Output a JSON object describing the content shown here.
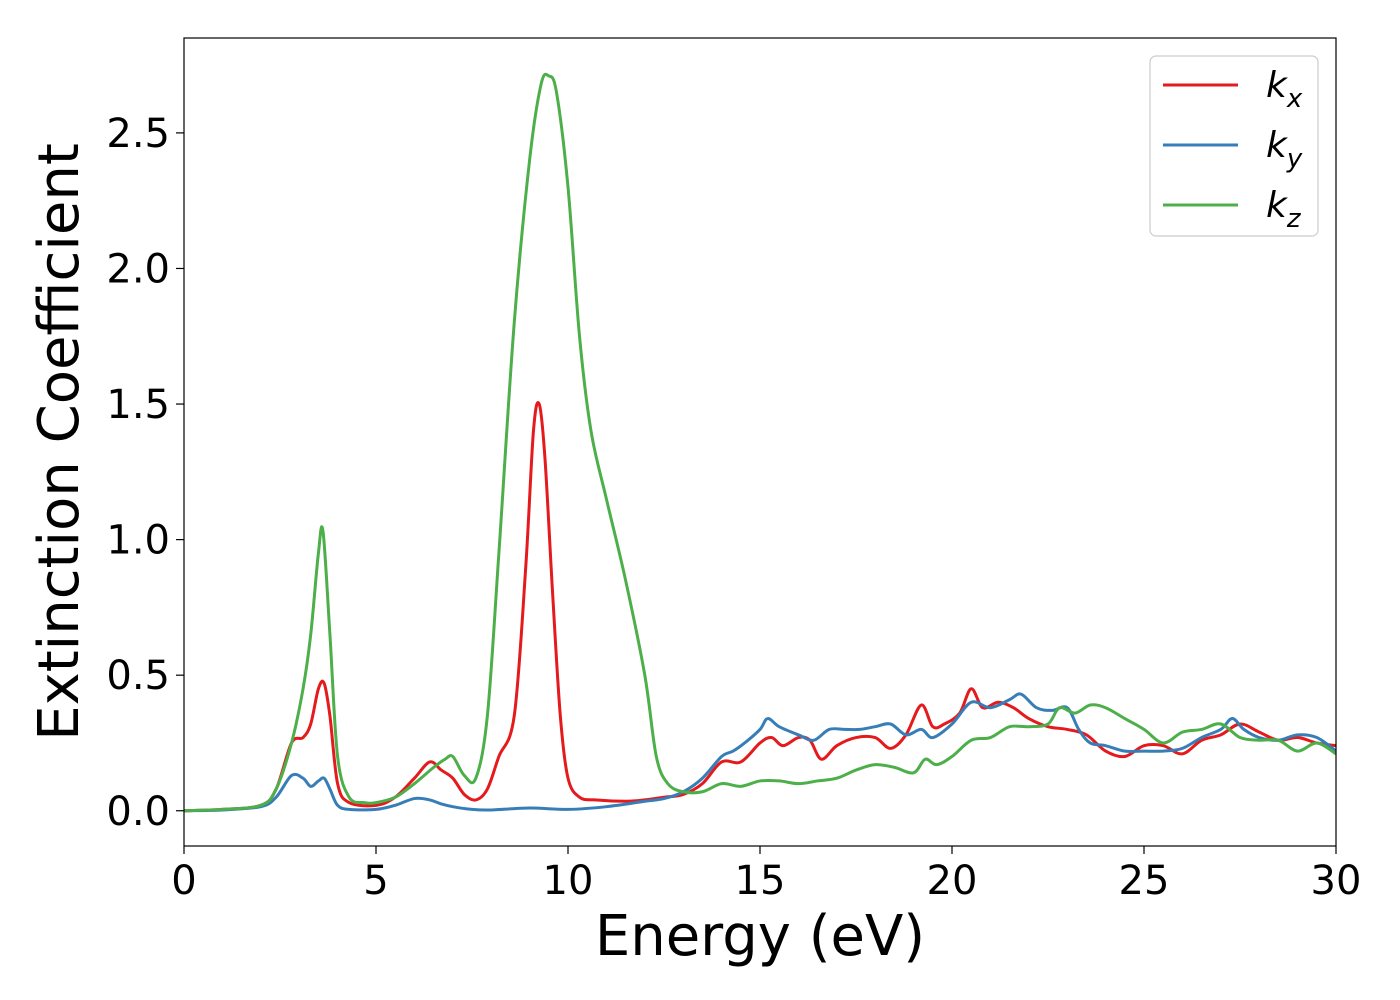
{
  "chart_data": {
    "type": "line",
    "xlabel": "Energy (eV)",
    "ylabel": "Extinction Coefficient",
    "xlim": [
      0,
      30
    ],
    "ylim": [
      -0.13,
      2.85
    ],
    "xticks": [
      0,
      5,
      10,
      15,
      20,
      25,
      30
    ],
    "yticks": [
      0.0,
      0.5,
      1.0,
      1.5,
      2.0,
      2.5
    ],
    "xtick_labels": [
      "0",
      "5",
      "10",
      "15",
      "20",
      "25",
      "30"
    ],
    "ytick_labels": [
      "0.0",
      "0.5",
      "1.0",
      "1.5",
      "2.0",
      "2.5"
    ],
    "grid": false,
    "legend_position": "top-right",
    "series": [
      {
        "name": "k",
        "subscript": "x",
        "color": "#e41a1c",
        "x": [
          0,
          1,
          2,
          2.4,
          2.8,
          3.1,
          3.3,
          3.5,
          3.65,
          3.8,
          4.0,
          4.3,
          5.0,
          5.5,
          6.0,
          6.4,
          6.7,
          7.0,
          7.3,
          7.6,
          7.9,
          8.2,
          8.6,
          8.9,
          9.1,
          9.25,
          9.4,
          9.6,
          9.8,
          10.0,
          10.3,
          10.7,
          11.5,
          12.0,
          12.5,
          13.0,
          13.5,
          14.0,
          14.5,
          15.0,
          15.3,
          15.6,
          16.0,
          16.3,
          16.6,
          17.0,
          17.5,
          18.0,
          18.4,
          18.8,
          19.2,
          19.5,
          19.8,
          20.2,
          20.5,
          20.8,
          21.2,
          21.6,
          22.0,
          22.5,
          23.0,
          23.5,
          24.0,
          24.5,
          25.0,
          25.5,
          26.0,
          26.5,
          27.0,
          27.5,
          28.0,
          28.5,
          29.0,
          29.5,
          30.0
        ],
        "values": [
          0.0,
          0.005,
          0.02,
          0.08,
          0.25,
          0.27,
          0.32,
          0.45,
          0.47,
          0.35,
          0.1,
          0.03,
          0.02,
          0.05,
          0.12,
          0.18,
          0.15,
          0.12,
          0.06,
          0.04,
          0.08,
          0.2,
          0.35,
          0.9,
          1.4,
          1.5,
          1.3,
          0.8,
          0.35,
          0.12,
          0.05,
          0.04,
          0.035,
          0.04,
          0.05,
          0.06,
          0.1,
          0.18,
          0.18,
          0.25,
          0.27,
          0.24,
          0.27,
          0.26,
          0.19,
          0.24,
          0.27,
          0.27,
          0.23,
          0.28,
          0.39,
          0.31,
          0.32,
          0.36,
          0.45,
          0.38,
          0.4,
          0.38,
          0.34,
          0.31,
          0.3,
          0.28,
          0.22,
          0.2,
          0.24,
          0.24,
          0.21,
          0.26,
          0.28,
          0.32,
          0.29,
          0.26,
          0.27,
          0.25,
          0.24
        ]
      },
      {
        "name": "k",
        "subscript": "y",
        "color": "#377eb8",
        "x": [
          0,
          1,
          2,
          2.4,
          2.8,
          3.1,
          3.3,
          3.5,
          3.65,
          3.8,
          4.0,
          4.3,
          5.0,
          5.5,
          6.0,
          6.4,
          6.7,
          7.0,
          7.5,
          8.0,
          9.0,
          10.0,
          11.0,
          12.0,
          12.5,
          13.0,
          13.5,
          14.0,
          14.3,
          14.6,
          15.0,
          15.2,
          15.5,
          16.0,
          16.4,
          16.8,
          17.2,
          17.6,
          18.0,
          18.4,
          18.8,
          19.2,
          19.5,
          20.0,
          20.5,
          21.0,
          21.5,
          21.8,
          22.2,
          22.6,
          23.0,
          23.3,
          23.6,
          24.0,
          24.5,
          25.0,
          25.5,
          26.0,
          26.5,
          27.0,
          27.3,
          27.6,
          28.0,
          28.5,
          29.0,
          29.5,
          30.0
        ],
        "values": [
          0.0,
          0.003,
          0.015,
          0.05,
          0.13,
          0.12,
          0.09,
          0.11,
          0.12,
          0.08,
          0.02,
          0.005,
          0.005,
          0.02,
          0.045,
          0.04,
          0.025,
          0.015,
          0.005,
          0.003,
          0.01,
          0.005,
          0.015,
          0.035,
          0.045,
          0.07,
          0.12,
          0.2,
          0.22,
          0.25,
          0.3,
          0.34,
          0.31,
          0.28,
          0.26,
          0.3,
          0.3,
          0.3,
          0.31,
          0.32,
          0.28,
          0.3,
          0.27,
          0.32,
          0.4,
          0.38,
          0.41,
          0.43,
          0.38,
          0.37,
          0.38,
          0.3,
          0.25,
          0.24,
          0.22,
          0.22,
          0.22,
          0.23,
          0.27,
          0.3,
          0.34,
          0.3,
          0.27,
          0.26,
          0.28,
          0.27,
          0.22
        ]
      },
      {
        "name": "k",
        "subscript": "z",
        "color": "#4daf4a",
        "x": [
          0,
          1,
          2,
          2.4,
          2.8,
          3.1,
          3.3,
          3.5,
          3.62,
          3.8,
          4.0,
          4.3,
          4.7,
          5.0,
          5.5,
          6.0,
          6.5,
          6.8,
          7.0,
          7.3,
          7.6,
          7.9,
          8.2,
          8.6,
          9.0,
          9.3,
          9.5,
          9.7,
          10.0,
          10.3,
          10.6,
          11.0,
          11.5,
          12.0,
          12.3,
          12.6,
          13.0,
          13.5,
          14.0,
          14.5,
          15.0,
          15.5,
          16.0,
          16.5,
          17.0,
          17.5,
          18.0,
          18.5,
          19.0,
          19.3,
          19.6,
          20.0,
          20.5,
          21.0,
          21.5,
          22.0,
          22.5,
          22.8,
          23.2,
          23.6,
          24.0,
          24.5,
          25.0,
          25.5,
          26.0,
          26.5,
          27.0,
          27.5,
          28.0,
          28.5,
          29.0,
          29.5,
          30.0
        ],
        "values": [
          0.0,
          0.005,
          0.02,
          0.08,
          0.25,
          0.45,
          0.65,
          0.95,
          1.03,
          0.65,
          0.2,
          0.05,
          0.03,
          0.03,
          0.05,
          0.1,
          0.16,
          0.19,
          0.2,
          0.13,
          0.12,
          0.35,
          0.95,
          1.8,
          2.4,
          2.68,
          2.71,
          2.65,
          2.3,
          1.75,
          1.4,
          1.15,
          0.85,
          0.5,
          0.2,
          0.1,
          0.07,
          0.07,
          0.1,
          0.09,
          0.11,
          0.11,
          0.1,
          0.11,
          0.12,
          0.15,
          0.17,
          0.16,
          0.14,
          0.19,
          0.17,
          0.2,
          0.26,
          0.27,
          0.31,
          0.31,
          0.32,
          0.38,
          0.36,
          0.39,
          0.38,
          0.34,
          0.3,
          0.25,
          0.29,
          0.3,
          0.32,
          0.27,
          0.26,
          0.26,
          0.22,
          0.25,
          0.21
        ]
      }
    ]
  }
}
